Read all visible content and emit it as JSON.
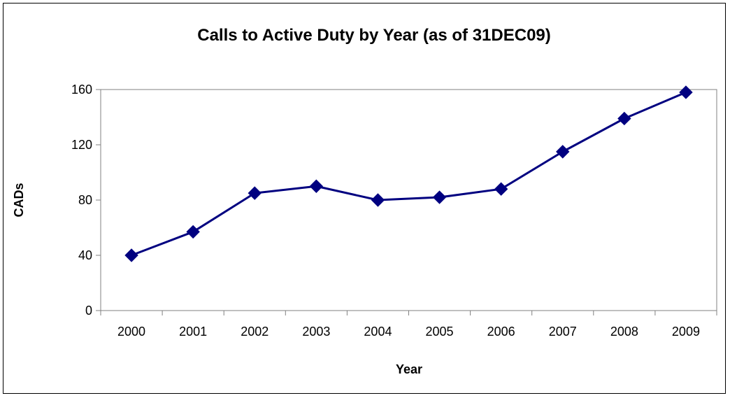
{
  "chart_data": {
    "type": "line",
    "title": "Calls to Active Duty by Year (as of 31DEC09)",
    "xlabel": "Year",
    "ylabel": "CADs",
    "categories": [
      "2000",
      "2001",
      "2002",
      "2003",
      "2004",
      "2005",
      "2006",
      "2007",
      "2008",
      "2009"
    ],
    "series": [
      {
        "values": [
          40,
          57,
          85,
          90,
          80,
          82,
          88,
          115,
          139,
          158
        ]
      }
    ],
    "ylim": [
      0,
      160
    ],
    "yticks": [
      0,
      40,
      80,
      120,
      160
    ],
    "grid": false,
    "legend": "none",
    "marker": "diamond",
    "series_color": "#000080"
  }
}
